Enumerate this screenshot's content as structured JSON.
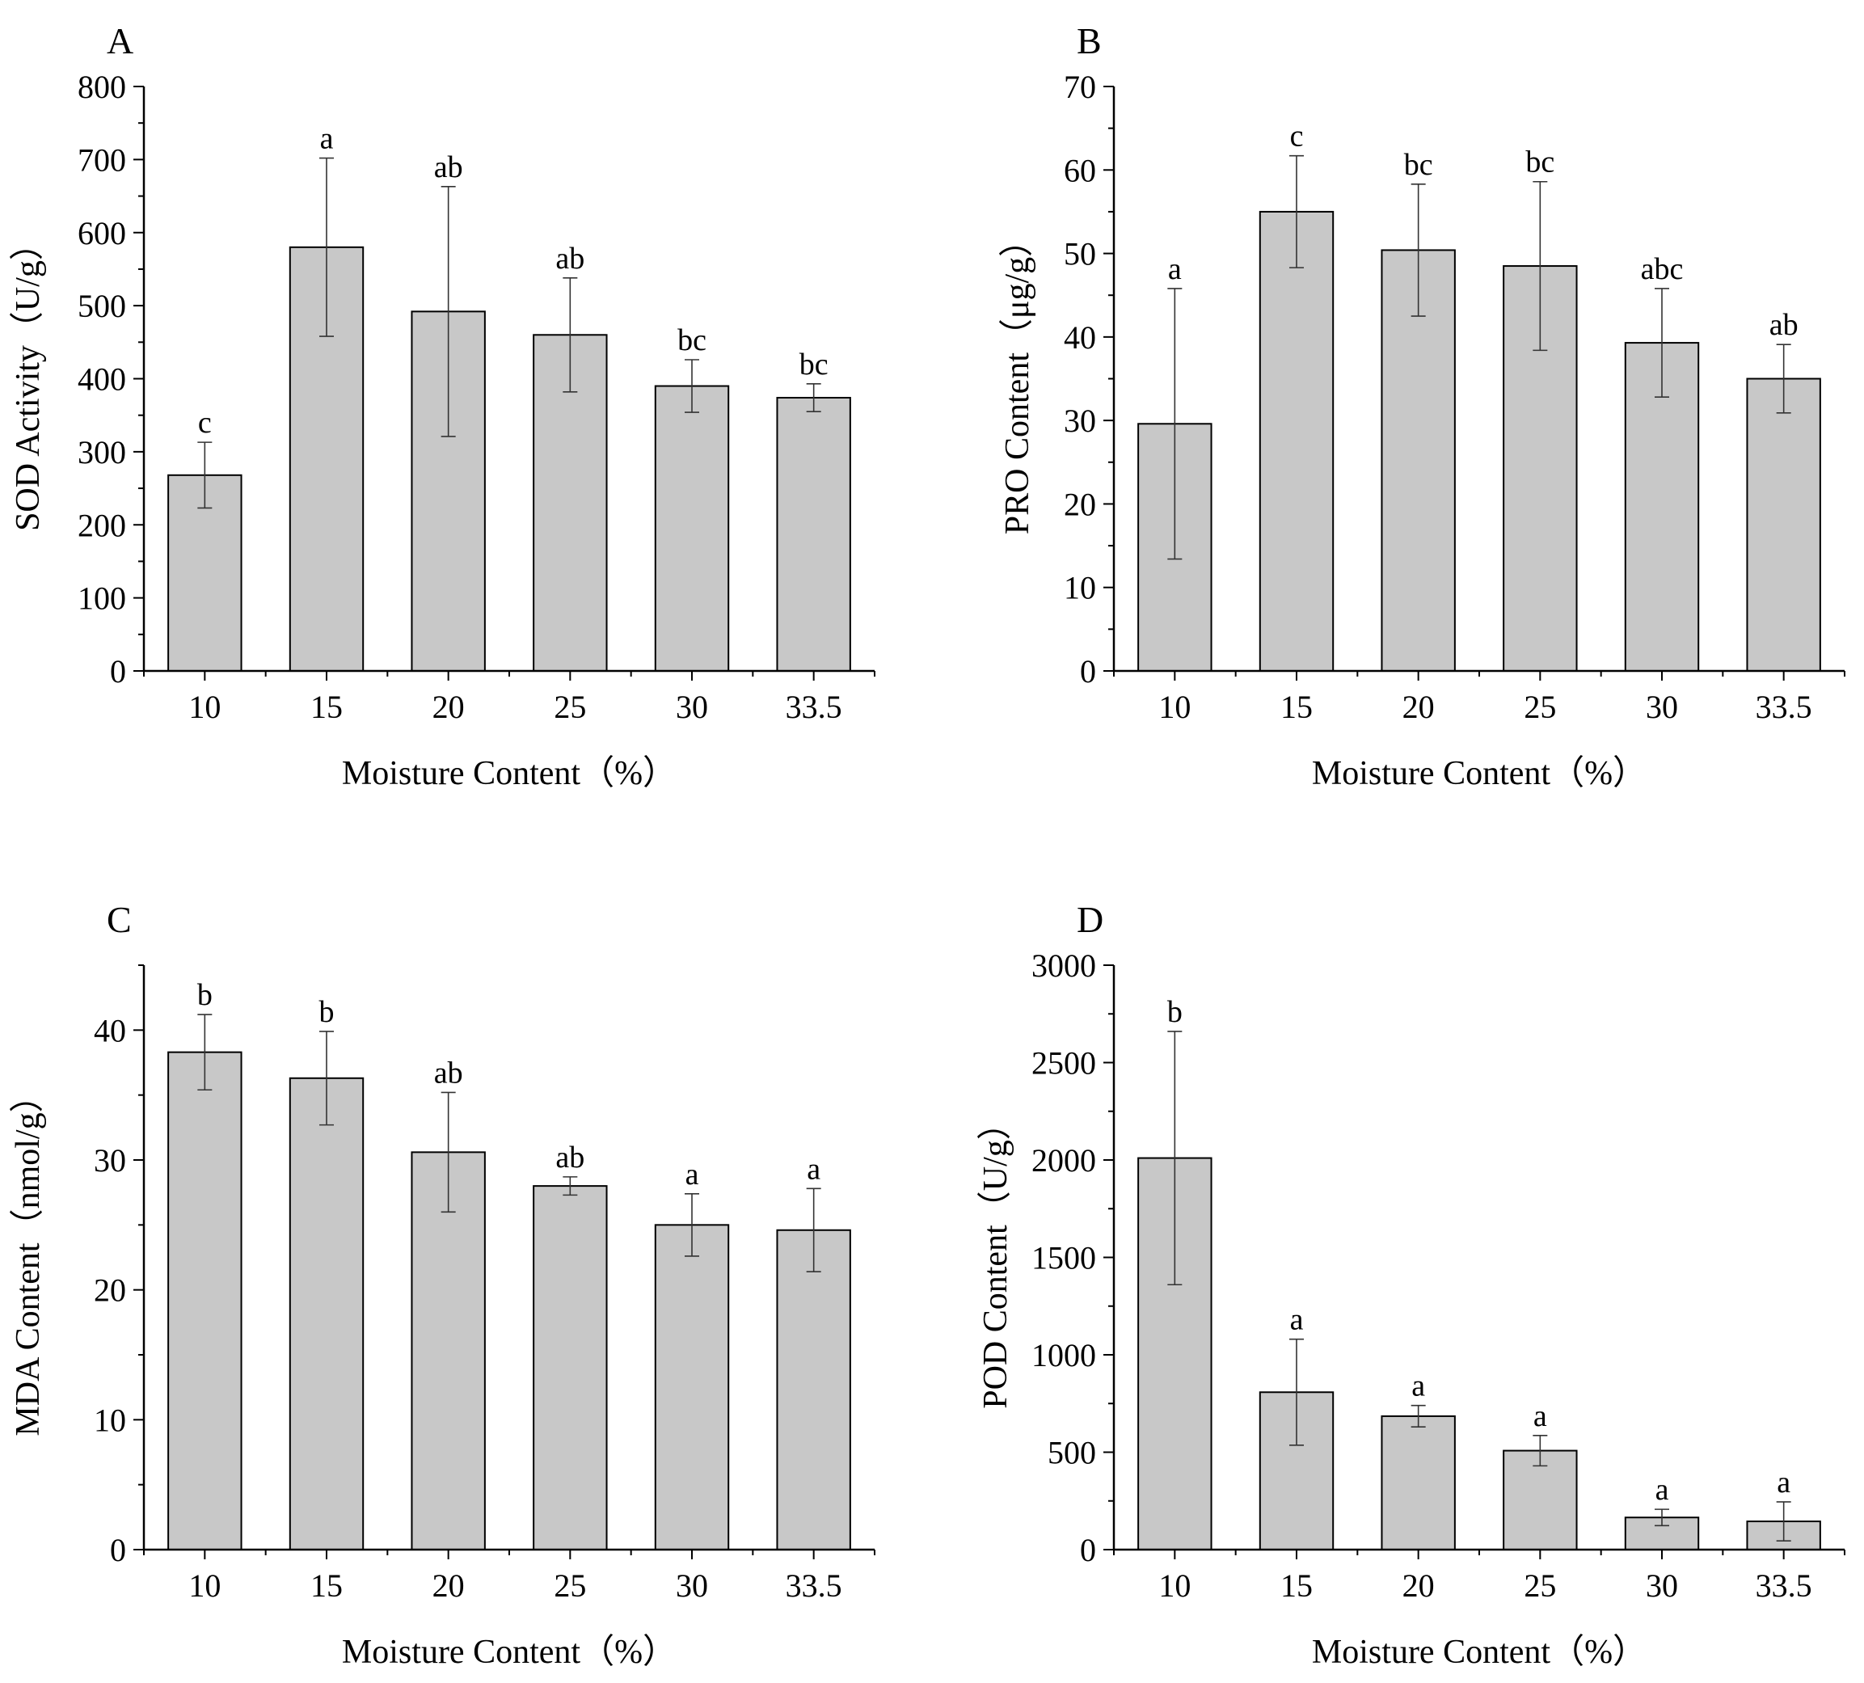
{
  "colors": {
    "bar": "#c8c8c8",
    "stroke": "#000000",
    "errorbar": "#333333",
    "background": "#ffffff"
  },
  "chart_data": [
    {
      "panel": "A",
      "type": "bar",
      "title": "",
      "xlabel": "Moisture Content（%）",
      "ylabel": "SOD Activity（U/g）",
      "categories": [
        "10",
        "15",
        "20",
        "25",
        "30",
        "33.5"
      ],
      "values": [
        268,
        580,
        492,
        460,
        390,
        374
      ],
      "error": [
        45,
        122,
        171,
        78,
        36,
        19
      ],
      "significance": [
        "c",
        "a",
        "ab",
        "ab",
        "bc",
        "bc"
      ],
      "ylim": [
        0,
        800
      ],
      "major_ticks": [
        0,
        100,
        200,
        300,
        400,
        500,
        600,
        700,
        800
      ],
      "minor_step": 50
    },
    {
      "panel": "B",
      "type": "bar",
      "title": "",
      "xlabel": "Moisture Content（%）",
      "ylabel": "PRO Content（μg/g）",
      "categories": [
        "10",
        "15",
        "20",
        "25",
        "30",
        "33.5"
      ],
      "values": [
        29.6,
        55.0,
        50.4,
        48.5,
        39.3,
        35.0
      ],
      "error": [
        16.2,
        6.7,
        7.9,
        10.1,
        6.5,
        4.1
      ],
      "significance": [
        "a",
        "c",
        "bc",
        "bc",
        "abc",
        "ab"
      ],
      "ylim": [
        0,
        70
      ],
      "major_ticks": [
        0,
        10,
        20,
        30,
        40,
        50,
        60,
        70
      ],
      "minor_step": 5
    },
    {
      "panel": "C",
      "type": "bar",
      "title": "",
      "xlabel": "Moisture Content（%）",
      "ylabel": "MDA Content（nmol/g）",
      "categories": [
        "10",
        "15",
        "20",
        "25",
        "30",
        "33.5"
      ],
      "values": [
        38.3,
        36.3,
        30.6,
        28.0,
        25.0,
        24.6
      ],
      "error": [
        2.9,
        3.6,
        4.6,
        0.7,
        2.4,
        3.2
      ],
      "significance": [
        "b",
        "b",
        "ab",
        "ab",
        "a",
        "a"
      ],
      "ylim": [
        0,
        45
      ],
      "major_ticks": [
        0,
        10,
        20,
        30,
        40
      ],
      "minor_step": 5
    },
    {
      "panel": "D",
      "type": "bar",
      "title": "",
      "xlabel": "Moisture Content（%）",
      "ylabel": "POD Content（U/g）",
      "categories": [
        "10",
        "15",
        "20",
        "25",
        "30",
        "33.5"
      ],
      "values": [
        2010,
        808,
        685,
        508,
        165,
        145
      ],
      "error": [
        650,
        272,
        55,
        78,
        42,
        100
      ],
      "significance": [
        "b",
        "a",
        "a",
        "a",
        "a",
        "a"
      ],
      "ylim": [
        0,
        3000
      ],
      "major_ticks": [
        0,
        500,
        1000,
        1500,
        2000,
        2500,
        3000
      ],
      "minor_step": 250
    }
  ]
}
